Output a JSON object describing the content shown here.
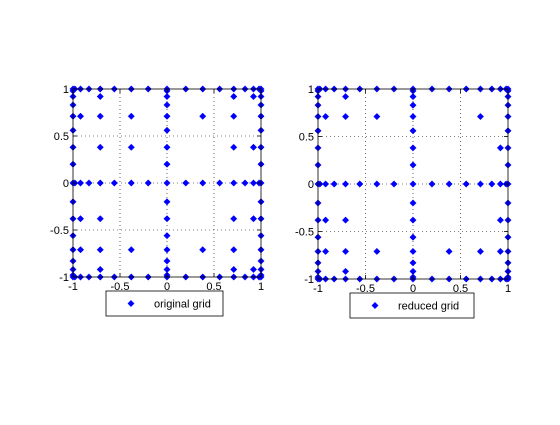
{
  "figure": {
    "background": "#ffffff",
    "marker_color": "#0000ff",
    "axis_color": "#000000"
  },
  "chart_data": [
    {
      "type": "scatter",
      "title": "",
      "xlabel": "",
      "ylabel": "",
      "xlim": [
        -1,
        1
      ],
      "ylim": [
        -1,
        1
      ],
      "xticks": [
        -1,
        -0.5,
        0,
        0.5,
        1
      ],
      "yticks": [
        -1,
        -0.5,
        0,
        0.5,
        1
      ],
      "xtick_labels": [
        "-1",
        "-0.5",
        "0",
        "0.5",
        "1"
      ],
      "ytick_labels": [
        "-1",
        "-0.5",
        "0",
        "0.5",
        "1"
      ],
      "grid": "dotted",
      "legend_position": "bottom",
      "series": [
        {
          "name": "original grid",
          "marker": "diamond",
          "color": "#0000ff",
          "x": [
            -1,
            -1,
            -1,
            -1,
            -1,
            -1,
            -1,
            -1,
            -1,
            -1,
            -1,
            -1,
            -1,
            -1,
            -1,
            -1,
            -1,
            1,
            1,
            1,
            1,
            1,
            1,
            1,
            1,
            1,
            1,
            1,
            1,
            1,
            1,
            1,
            1,
            1,
            -0.98,
            -0.92,
            -0.83,
            -0.71,
            -0.56,
            -0.38,
            -0.2,
            0.2,
            0.38,
            0.56,
            0.71,
            0.83,
            0.92,
            0.98,
            -0.98,
            -0.92,
            -0.83,
            -0.71,
            -0.56,
            -0.38,
            -0.2,
            0.2,
            0.38,
            0.56,
            0.71,
            0.83,
            0.92,
            0.98,
            0,
            0,
            0,
            0,
            0,
            0,
            0,
            0,
            0,
            0,
            0,
            0,
            0,
            0,
            0,
            0,
            0,
            -0.98,
            -0.92,
            -0.83,
            -0.71,
            -0.56,
            -0.38,
            -0.2,
            0.2,
            0.38,
            0.56,
            0.71,
            0.83,
            0.92,
            0.98,
            -0.92,
            -0.92,
            -0.71,
            -0.71,
            -0.71,
            -0.71,
            -0.71,
            -0.38,
            -0.38,
            -0.38,
            0.38,
            0.38,
            0.71,
            0.71,
            0.71,
            0.71,
            0.92,
            0.92,
            0.92,
            0.92,
            -0.92,
            0.71,
            0.71,
            -0.71
          ],
          "y": [
            -1,
            -0.98,
            -0.92,
            -0.83,
            -0.71,
            -0.56,
            -0.38,
            -0.2,
            0,
            0.2,
            0.38,
            0.56,
            0.71,
            0.83,
            0.92,
            0.98,
            1,
            -1,
            -0.98,
            -0.92,
            -0.83,
            -0.71,
            -0.56,
            -0.38,
            -0.2,
            0,
            0.2,
            0.38,
            0.56,
            0.71,
            0.83,
            0.92,
            0.98,
            1,
            1,
            1,
            1,
            1,
            1,
            1,
            1,
            1,
            1,
            1,
            1,
            1,
            1,
            1,
            -1,
            -1,
            -1,
            -1,
            -1,
            -1,
            -1,
            -1,
            -1,
            -1,
            -1,
            -1,
            -1,
            -1,
            -1,
            -0.98,
            -0.92,
            -0.83,
            -0.71,
            -0.56,
            -0.38,
            -0.2,
            0,
            0.2,
            0.38,
            0.56,
            0.71,
            0.83,
            0.92,
            0.98,
            1,
            0,
            0,
            0,
            0,
            0,
            0,
            0,
            0,
            0,
            0,
            0,
            0,
            0,
            0,
            0.71,
            -0.71,
            0.92,
            0.71,
            0.38,
            -0.38,
            -0.71,
            0.71,
            0.38,
            -0.71,
            0.71,
            -0.71,
            0.71,
            0.38,
            -0.38,
            -0.71,
            0.38,
            -0.38,
            0.92,
            -0.92,
            -0.38,
            0.92,
            -0.92,
            -0.92
          ]
        }
      ]
    },
    {
      "type": "scatter",
      "title": "",
      "xlabel": "",
      "ylabel": "",
      "xlim": [
        -1,
        1
      ],
      "ylim": [
        -1,
        1
      ],
      "xticks": [
        -1,
        -0.5,
        0,
        0.5,
        1
      ],
      "yticks": [
        -1,
        -0.5,
        0,
        0.5,
        1
      ],
      "xtick_labels": [
        "-1",
        "-0.5",
        "0",
        "0.5",
        "1"
      ],
      "ytick_labels": [
        "-1",
        "-0.5",
        "0",
        "0.5",
        "1"
      ],
      "grid": "dotted",
      "legend_position": "bottom",
      "series": [
        {
          "name": "reduced grid",
          "marker": "diamond",
          "color": "#0000ff",
          "x": [
            -1,
            -1,
            -1,
            -1,
            -1,
            -1,
            -1,
            -1,
            -1,
            -1,
            -1,
            -1,
            -1,
            -1,
            -1,
            -1,
            -1,
            1,
            1,
            1,
            1,
            1,
            1,
            1,
            1,
            1,
            1,
            1,
            1,
            1,
            1,
            1,
            1,
            1,
            -0.98,
            -0.92,
            -0.83,
            -0.71,
            -0.56,
            -0.38,
            -0.2,
            0.2,
            0.38,
            0.56,
            0.71,
            0.83,
            0.92,
            0.98,
            -0.98,
            -0.92,
            -0.83,
            -0.71,
            -0.56,
            -0.38,
            -0.2,
            0.2,
            0.38,
            0.56,
            0.71,
            0.83,
            0.92,
            0.98,
            0,
            0,
            0,
            0,
            0,
            0,
            0,
            0,
            0,
            0,
            0,
            0,
            0,
            0,
            0,
            0,
            0,
            -0.98,
            -0.92,
            -0.83,
            -0.71,
            -0.56,
            -0.38,
            -0.2,
            0.2,
            0.38,
            0.56,
            0.71,
            0.83,
            0.92,
            0.98,
            -0.92,
            -0.92,
            -0.71,
            -0.71,
            -0.71,
            -0.71,
            -0.38,
            -0.38,
            0.38,
            0.71,
            0.71,
            0.92,
            0.92,
            0.92,
            -0.92,
            -0.71
          ],
          "y": [
            -1,
            -0.98,
            -0.92,
            -0.83,
            -0.71,
            -0.56,
            -0.38,
            -0.2,
            0,
            0.2,
            0.38,
            0.56,
            0.71,
            0.83,
            0.92,
            0.98,
            1,
            -1,
            -0.98,
            -0.92,
            -0.83,
            -0.71,
            -0.56,
            -0.38,
            -0.2,
            0,
            0.2,
            0.38,
            0.56,
            0.71,
            0.83,
            0.92,
            0.98,
            1,
            1,
            1,
            1,
            1,
            1,
            1,
            1,
            1,
            1,
            1,
            1,
            1,
            1,
            1,
            -1,
            -1,
            -1,
            -1,
            -1,
            -1,
            -1,
            -1,
            -1,
            -1,
            -1,
            -1,
            -1,
            -1,
            -1,
            -0.98,
            -0.92,
            -0.83,
            -0.71,
            -0.56,
            -0.38,
            -0.2,
            0,
            0.2,
            0.38,
            0.56,
            0.71,
            0.83,
            0.92,
            0.98,
            1,
            0,
            0,
            0,
            0,
            0,
            0,
            0,
            0,
            0,
            0,
            0,
            0,
            0,
            0,
            0.71,
            -0.71,
            0.92,
            0.71,
            -0.71,
            -0.92,
            0.71,
            -0.71,
            -0.71,
            0.71,
            -0.71,
            0.38,
            -0.38,
            -0.71,
            -0.38,
            -0.38
          ]
        }
      ]
    }
  ]
}
